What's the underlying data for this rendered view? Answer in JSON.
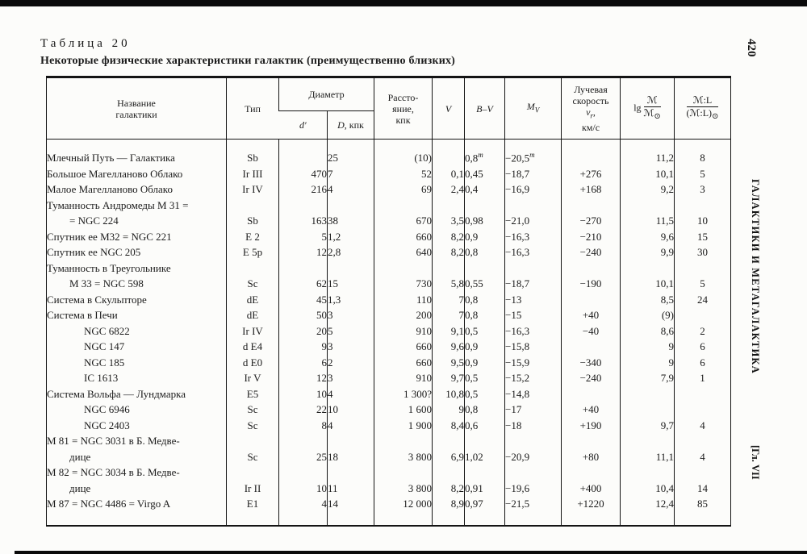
{
  "page": {
    "number": "420",
    "running_head": "ГАЛАКТИКИ И МЕТАГАЛАКТИКА",
    "chapter": "[Гл. VII",
    "table_label": "Таблица 20",
    "table_title": "Некоторые физические характеристики галактик (преимущественно близких)"
  },
  "table": {
    "headers": {
      "name_l1": "Название",
      "name_l2": "галактики",
      "type": "Тип",
      "diameter": "Диаметр",
      "d_prime": "d′",
      "D_letter": "D",
      "D_rest": ", кпк",
      "dist_l1": "Рассто-",
      "dist_l2": "яние,",
      "dist_l3": "кпк",
      "V": "V",
      "BV": "B–V",
      "M_letter": "M",
      "M_sub": "V",
      "vel_l1": "Лучевая",
      "vel_l2": "скорость",
      "vel_v": "v",
      "vel_sub": "r",
      "vel_comma": ",",
      "vel_l4": "км/с",
      "lg_prefix": "lg",
      "lg_num": "ℳ",
      "lg_den": "ℳ",
      "lg_den_sub": "⊙",
      "ml_num": "ℳ:L",
      "ml_den": "(ℳ:L)",
      "ml_den_sub": "⊙"
    },
    "rows": [
      {
        "name": [
          "Млечный Путь — Галактика"
        ],
        "indent": false,
        "type": "Sb",
        "d": "",
        "D": "25",
        "dist": "(10)",
        "V": "",
        "BV": "0,8^m",
        "MV": "−20,5^m",
        "vr": "",
        "lg": "11,2",
        "ML": "8"
      },
      {
        "name": [
          "Большое Магелланово Облако"
        ],
        "indent": false,
        "type": "Ir III",
        "d": "470",
        "D": "7",
        "dist": "52",
        "V": "0,1",
        "BV": "0,45",
        "MV": "−18,7",
        "vr": "+276",
        "lg": "10,1",
        "ML": "5"
      },
      {
        "name": [
          "Малое Магелланово Облако"
        ],
        "indent": false,
        "type": "Ir IV",
        "d": "216",
        "D": "4",
        "dist": "69",
        "V": "2,4",
        "BV": "0,4",
        "MV": "−16,9",
        "vr": "+168",
        "lg": "9,2",
        "ML": "3"
      },
      {
        "name": [
          "Туманность Андромеды M 31 =",
          "= NGC 224"
        ],
        "indent": false,
        "type": "Sb",
        "d": "163",
        "D": "38",
        "dist": "670",
        "V": "3,5",
        "BV": "0,98",
        "MV": "−21,0",
        "vr": "−270",
        "lg": "11,5",
        "ML": "10"
      },
      {
        "name": [
          "Спутник ее  M32 = NGC 221"
        ],
        "indent": false,
        "type": "E 2",
        "d": "5",
        "D": "1,2",
        "dist": "660",
        "V": "8,2",
        "BV": "0,9",
        "MV": "−16,3",
        "vr": "−210",
        "lg": "9,6",
        "ML": "15"
      },
      {
        "name": [
          "Спутник ее NGC 205"
        ],
        "indent": false,
        "type": "E 5p",
        "d": "12",
        "D": "2,8",
        "dist": "640",
        "V": "8,2",
        "BV": "0,8",
        "MV": "−16,3",
        "vr": "−240",
        "lg": "9,9",
        "ML": "30"
      },
      {
        "name": [
          "Туманность в Треугольнике",
          "M 33 = NGC 598"
        ],
        "indent": false,
        "type": "Sc",
        "d": "62",
        "D": "15",
        "dist": "730",
        "V": "5,8",
        "BV": "0,55",
        "MV": "−18,7",
        "vr": "−190",
        "lg": "10,1",
        "ML": "5"
      },
      {
        "name": [
          "Система в Скульпторе"
        ],
        "indent": false,
        "type": "dE",
        "d": "45",
        "D": "1,3",
        "dist": "110",
        "V": "7",
        "BV": "0,8",
        "MV": "−13",
        "vr": "",
        "lg": "8,5",
        "ML": "24"
      },
      {
        "name": [
          "Система в Печи"
        ],
        "indent": false,
        "type": "dE",
        "d": "50",
        "D": "3",
        "dist": "200",
        "V": "7",
        "BV": "0,8",
        "MV": "−15",
        "vr": "+40",
        "lg": "(9)",
        "ML": ""
      },
      {
        "name": [
          "NGC 6822"
        ],
        "indent": true,
        "type": "Ir IV",
        "d": "20",
        "D": "5",
        "dist": "910",
        "V": "9,1",
        "BV": "0,5",
        "MV": "−16,3",
        "vr": "−40",
        "lg": "8,6",
        "ML": "2"
      },
      {
        "name": [
          "NGC 147"
        ],
        "indent": true,
        "type": "d E4",
        "d": "9",
        "D": "3",
        "dist": "660",
        "V": "9,6",
        "BV": "0,9",
        "MV": "−15,8",
        "vr": "",
        "lg": "9",
        "ML": "6"
      },
      {
        "name": [
          "NGC 185"
        ],
        "indent": true,
        "type": "d E0",
        "d": "6",
        "D": "2",
        "dist": "660",
        "V": "9,5",
        "BV": "0,9",
        "MV": "−15,9",
        "vr": "−340",
        "lg": "9",
        "ML": "6"
      },
      {
        "name": [
          "IC 1613"
        ],
        "indent": true,
        "type": "Ir V",
        "d": "12",
        "D": "3",
        "dist": "910",
        "V": "9,7",
        "BV": "0,5",
        "MV": "−15,2",
        "vr": "−240",
        "lg": "7,9",
        "ML": "1"
      },
      {
        "name": [
          "Система Вольфа — Лундмарка"
        ],
        "indent": false,
        "type": "E5",
        "d": "10",
        "D": "4",
        "dist": "1 300?",
        "V": "10,8",
        "BV": "0,5",
        "MV": "−14,8",
        "vr": "",
        "lg": "",
        "ML": ""
      },
      {
        "name": [
          "NGC 6946"
        ],
        "indent": true,
        "type": "Sc",
        "d": "22",
        "D": "10",
        "dist": "1 600",
        "V": "9",
        "BV": "0,8",
        "MV": "−17",
        "vr": "+40",
        "lg": "",
        "ML": ""
      },
      {
        "name": [
          "NGC 2403"
        ],
        "indent": true,
        "type": "Sc",
        "d": "8",
        "D": "4",
        "dist": "1 900",
        "V": "8,4",
        "BV": "0,6",
        "MV": "−18",
        "vr": "+190",
        "lg": "9,7",
        "ML": "4"
      },
      {
        "name": [
          "M 81 = NGC 3031 в Б. Медве-",
          "дице"
        ],
        "indent": false,
        "type": "Sc",
        "d": "25",
        "D": "18",
        "dist": "3 800",
        "V": "6,9",
        "BV": "1,02",
        "MV": "−20,9",
        "vr": "+80",
        "lg": "11,1",
        "ML": "4"
      },
      {
        "name": [
          "M 82 = NGC 3034 в Б. Медве-",
          "дице"
        ],
        "indent": false,
        "type": "Ir II",
        "d": "10",
        "D": "11",
        "dist": "3 800",
        "V": "8,2",
        "BV": "0,91",
        "MV": "−19,6",
        "vr": "+400",
        "lg": "10,4",
        "ML": "14"
      },
      {
        "name": [
          "M 87 = NGC 4486 = Virgo A"
        ],
        "indent": false,
        "type": "E1",
        "d": "4",
        "D": "14",
        "dist": "12 000",
        "V": "8,9",
        "BV": "0,97",
        "MV": "−21,5",
        "vr": "+1220",
        "lg": "12,4",
        "ML": "85"
      }
    ]
  }
}
